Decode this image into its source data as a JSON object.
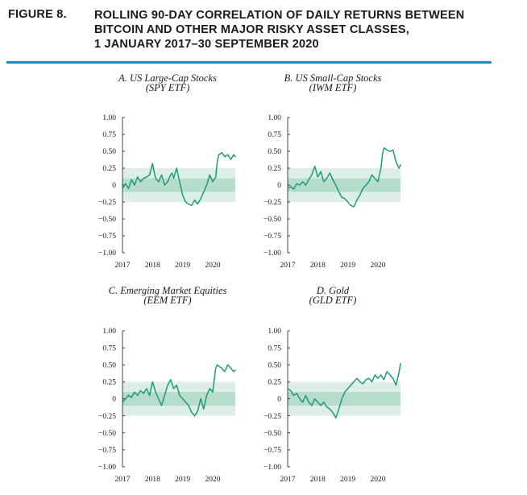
{
  "figure": {
    "label": "FIGURE 8.",
    "title_lines": [
      "ROLLING 90-DAY CORRELATION OF DAILY RETURNS BETWEEN",
      "BITCOIN AND OTHER MAJOR RISKY ASSET CLASSES,",
      "1 JANUARY 2017–30 SEPTEMBER 2020"
    ]
  },
  "colors": {
    "accent_rule": "#1a8fc4",
    "line": "#1f9a7e",
    "band_outer": "#dceee6",
    "band_inner": "#b6dccb"
  },
  "chart_data": [
    {
      "type": "line",
      "title": "A. US Large-Cap Stocks",
      "subtitle": "(SPY ETF)",
      "ylim": [
        -1.0,
        1.0
      ],
      "yticks": [
        "1.00",
        "0.75",
        "0.50",
        "0.25",
        "0",
        "−0.25",
        "−0.50",
        "−0.75",
        "−1.00"
      ],
      "xticks": [
        "2017",
        "2018",
        "2019",
        "2020"
      ],
      "xtick_values": [
        2017.0,
        2018.0,
        2019.0,
        2020.0
      ],
      "xlim": [
        2017.0,
        2020.75
      ],
      "bands": [
        {
          "from": -0.25,
          "to": 0.25
        },
        {
          "from": -0.1,
          "to": 0.1
        }
      ],
      "x": [
        2017.0,
        2017.1,
        2017.2,
        2017.3,
        2017.4,
        2017.5,
        2017.6,
        2017.7,
        2017.8,
        2017.9,
        2018.0,
        2018.05,
        2018.1,
        2018.2,
        2018.3,
        2018.35,
        2018.4,
        2018.5,
        2018.6,
        2018.65,
        2018.7,
        2018.8,
        2018.9,
        2019.0,
        2019.1,
        2019.2,
        2019.3,
        2019.4,
        2019.5,
        2019.6,
        2019.7,
        2019.8,
        2019.9,
        2020.0,
        2020.1,
        2020.15,
        2020.2,
        2020.3,
        2020.4,
        2020.5,
        2020.6,
        2020.7,
        2020.75
      ],
      "y": [
        -0.05,
        0.02,
        -0.05,
        0.08,
        0.0,
        0.12,
        0.05,
        0.1,
        0.12,
        0.15,
        0.32,
        0.2,
        0.1,
        0.05,
        0.15,
        0.08,
        0.0,
        0.05,
        0.15,
        0.18,
        0.1,
        0.25,
        0.05,
        -0.15,
        -0.25,
        -0.28,
        -0.3,
        -0.22,
        -0.28,
        -0.2,
        -0.1,
        0.0,
        0.15,
        0.05,
        0.12,
        0.35,
        0.45,
        0.48,
        0.42,
        0.45,
        0.38,
        0.45,
        0.42
      ]
    },
    {
      "type": "line",
      "title": "B. US Small-Cap Stocks",
      "subtitle": "(IWM ETF)",
      "ylim": [
        -1.0,
        1.0
      ],
      "yticks": [
        "1.00",
        "0.75",
        "0.50",
        "0.25",
        "0",
        "−0.25",
        "−0.50",
        "−0.75",
        "−1.00"
      ],
      "xticks": [
        "2017",
        "2018",
        "2019",
        "2020"
      ],
      "xtick_values": [
        2017.0,
        2018.0,
        2019.0,
        2020.0
      ],
      "xlim": [
        2017.0,
        2020.75
      ],
      "bands": [
        {
          "from": -0.25,
          "to": 0.25
        },
        {
          "from": -0.1,
          "to": 0.1
        }
      ],
      "x": [
        2017.0,
        2017.1,
        2017.2,
        2017.3,
        2017.4,
        2017.5,
        2017.6,
        2017.7,
        2017.8,
        2017.9,
        2018.0,
        2018.1,
        2018.2,
        2018.3,
        2018.4,
        2018.5,
        2018.6,
        2018.7,
        2018.8,
        2018.9,
        2019.0,
        2019.1,
        2019.2,
        2019.3,
        2019.4,
        2019.5,
        2019.6,
        2019.7,
        2019.8,
        2019.9,
        2020.0,
        2020.1,
        2020.15,
        2020.2,
        2020.3,
        2020.4,
        2020.5,
        2020.6,
        2020.7,
        2020.75
      ],
      "y": [
        -0.05,
        -0.02,
        -0.06,
        0.02,
        0.0,
        0.05,
        0.0,
        0.08,
        0.15,
        0.28,
        0.12,
        0.2,
        0.05,
        0.1,
        0.18,
        0.08,
        0.0,
        -0.1,
        -0.18,
        -0.2,
        -0.25,
        -0.3,
        -0.32,
        -0.22,
        -0.15,
        -0.05,
        0.0,
        0.05,
        0.15,
        0.1,
        0.05,
        0.25,
        0.45,
        0.55,
        0.52,
        0.5,
        0.52,
        0.35,
        0.25,
        0.3
      ]
    },
    {
      "type": "line",
      "title": "C. Emerging Market Equities",
      "subtitle": "(EEM ETF)",
      "ylim": [
        -1.0,
        1.0
      ],
      "yticks": [
        "1.00",
        "0.75",
        "0.50",
        "0.25",
        "0",
        "−0.25",
        "−0.50",
        "−0.75",
        "−1.00"
      ],
      "xticks": [
        "2017",
        "2018",
        "2019",
        "2020"
      ],
      "xtick_values": [
        2017.0,
        2018.0,
        2019.0,
        2020.0
      ],
      "xlim": [
        2017.0,
        2020.75
      ],
      "bands": [
        {
          "from": -0.25,
          "to": 0.25
        },
        {
          "from": -0.1,
          "to": 0.1
        }
      ],
      "x": [
        2017.0,
        2017.1,
        2017.2,
        2017.3,
        2017.4,
        2017.5,
        2017.6,
        2017.7,
        2017.8,
        2017.9,
        2018.0,
        2018.1,
        2018.2,
        2018.3,
        2018.4,
        2018.5,
        2018.6,
        2018.7,
        2018.8,
        2018.9,
        2019.0,
        2019.1,
        2019.2,
        2019.3,
        2019.4,
        2019.5,
        2019.6,
        2019.7,
        2019.8,
        2019.9,
        2020.0,
        2020.1,
        2020.15,
        2020.2,
        2020.3,
        2020.4,
        2020.5,
        2020.6,
        2020.7,
        2020.75
      ],
      "y": [
        -0.05,
        0.0,
        0.05,
        0.02,
        0.1,
        0.05,
        0.12,
        0.08,
        0.15,
        0.05,
        0.25,
        0.1,
        0.0,
        -0.1,
        0.05,
        0.2,
        0.28,
        0.15,
        0.2,
        0.05,
        0.0,
        -0.05,
        -0.1,
        -0.2,
        -0.25,
        -0.18,
        0.0,
        -0.15,
        0.05,
        0.15,
        0.1,
        0.45,
        0.5,
        0.48,
        0.45,
        0.4,
        0.5,
        0.45,
        0.4,
        0.42
      ]
    },
    {
      "type": "line",
      "title": "D. Gold",
      "subtitle": "(GLD ETF)",
      "ylim": [
        -1.0,
        1.0
      ],
      "yticks": [
        "1.00",
        "0.75",
        "0.50",
        "0.25",
        "0",
        "−0.25",
        "−0.50",
        "−0.75",
        "−1.00"
      ],
      "xticks": [
        "2017",
        "2018",
        "2019",
        "2020"
      ],
      "xtick_values": [
        2017.0,
        2018.0,
        2019.0,
        2020.0
      ],
      "xlim": [
        2017.0,
        2020.75
      ],
      "bands": [
        {
          "from": -0.25,
          "to": 0.25
        },
        {
          "from": -0.1,
          "to": 0.1
        }
      ],
      "x": [
        2017.0,
        2017.1,
        2017.2,
        2017.3,
        2017.4,
        2017.5,
        2017.6,
        2017.7,
        2017.8,
        2017.9,
        2018.0,
        2018.1,
        2018.2,
        2018.3,
        2018.4,
        2018.5,
        2018.6,
        2018.7,
        2018.8,
        2018.9,
        2019.0,
        2019.1,
        2019.2,
        2019.3,
        2019.4,
        2019.5,
        2019.6,
        2019.7,
        2019.8,
        2019.9,
        2020.0,
        2020.1,
        2020.2,
        2020.3,
        2020.4,
        2020.5,
        2020.6,
        2020.7,
        2020.75
      ],
      "y": [
        0.15,
        0.12,
        0.05,
        0.08,
        0.0,
        -0.05,
        0.05,
        -0.05,
        -0.1,
        0.0,
        -0.05,
        -0.1,
        -0.05,
        -0.12,
        -0.15,
        -0.2,
        -0.28,
        -0.15,
        0.0,
        0.1,
        0.15,
        0.2,
        0.25,
        0.3,
        0.25,
        0.22,
        0.28,
        0.3,
        0.25,
        0.35,
        0.3,
        0.35,
        0.28,
        0.4,
        0.35,
        0.3,
        0.2,
        0.38,
        0.52
      ]
    }
  ]
}
